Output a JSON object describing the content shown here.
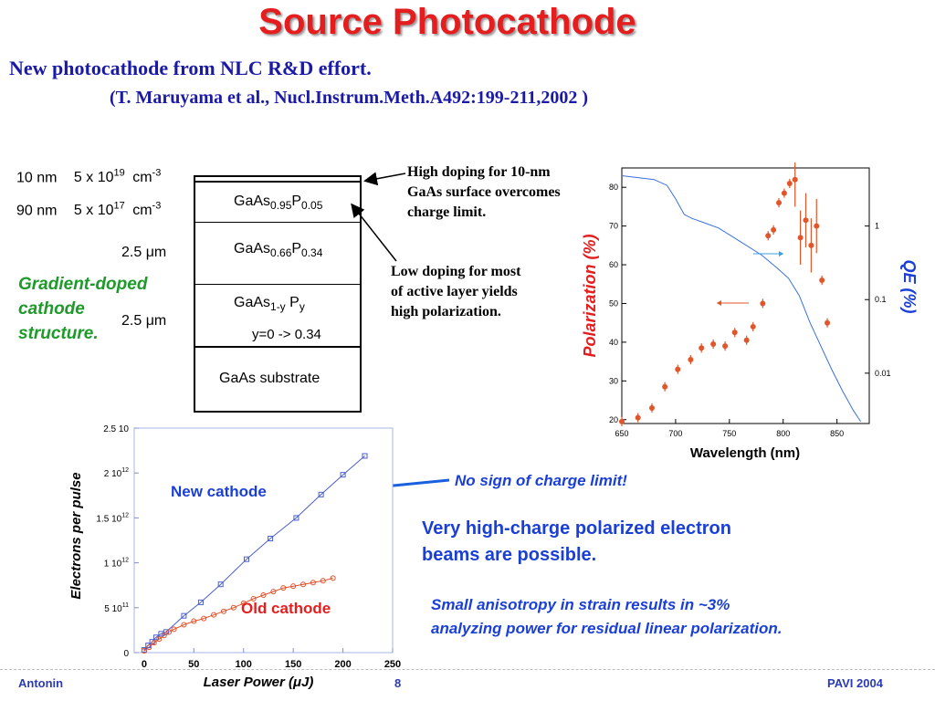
{
  "slide": {
    "title": "Source Photocathode",
    "subtitle": "New photocathode from NLC R&D effort.",
    "reference": "(T. Maruyama et al., Nucl.Instrum.Meth.A492:199-211,2002 )"
  },
  "structure": {
    "rows": [
      {
        "thickness": "10 nm",
        "doping_mantissa": "5 x 10",
        "doping_exp": "19",
        "unit": "cm",
        "unit_exp": "-3"
      },
      {
        "thickness": "90 nm",
        "doping_mantissa": "5 x 10",
        "doping_exp": "17",
        "unit": "cm",
        "unit_exp": "-3"
      }
    ],
    "thickness_top": "2.5 μm",
    "thickness_bottom": "2.5 μm",
    "caption": [
      "Gradient-doped",
      "cathode",
      "structure."
    ],
    "layers": [
      {
        "base": "GaAs",
        "sub1": "0.95",
        "mid": "P",
        "sub2": "0.05"
      },
      {
        "base": "GaAs",
        "sub1": "0.66",
        "mid": "P",
        "sub2": "0.34"
      },
      {
        "base": "GaAs",
        "sub1": "1-y",
        "mid": " P",
        "sub2": "y",
        "note": "y=0 -> 0.34"
      },
      {
        "label": "GaAs substrate"
      }
    ]
  },
  "notes": {
    "high_doping": [
      "High doping for 10-nm",
      "GaAs surface overcomes",
      "charge limit."
    ],
    "low_doping": [
      "Low doping for most",
      "of active layer yields",
      "high polarization."
    ],
    "no_charge_limit": "No sign of charge limit!",
    "high_charge": [
      "Very high-charge polarized electron",
      "beams are possible."
    ],
    "anisotropy": [
      "Small anisotropy in strain results in ~3%",
      "analyzing power for residual linear polarization."
    ]
  },
  "footer": {
    "left": "Antonin",
    "page": "8",
    "right": "PAVI 2004"
  },
  "colors": {
    "title": "#e41e1e",
    "accent_blue": "#1a3fd6",
    "green": "#1d9a2a",
    "data_red": "#e0562a",
    "line_blue": "#3a6fe0"
  },
  "chart_data": [
    {
      "type": "scatter",
      "xlabel": "Wavelength (nm)",
      "ylabel": "Polarization (%)",
      "y2label": "QE (%)",
      "xlim": [
        650,
        880
      ],
      "ylim": [
        19,
        85
      ],
      "x_ticks": [
        "650",
        "700",
        "750",
        "800",
        "850"
      ],
      "y_ticks": [
        "20",
        "30",
        "40",
        "50",
        "60",
        "70",
        "80"
      ],
      "y2_ticks": [
        "1",
        "0.1",
        "0.01"
      ],
      "series": [
        {
          "x": [
            650,
            665,
            678,
            690,
            702,
            714,
            724,
            735,
            746,
            755,
            766,
            772,
            781,
            786,
            791,
            796,
            801,
            806,
            811,
            816,
            821,
            826,
            831,
            836,
            841
          ],
          "y": [
            19.5,
            20.5,
            23,
            28.5,
            33,
            35.5,
            38.5,
            39.5,
            39,
            42.5,
            40.5,
            44,
            50,
            67.5,
            69,
            76,
            78.5,
            81,
            82,
            67,
            71.5,
            65,
            70,
            56,
            45
          ]
        }
      ],
      "qe_curve": {
        "x": [
          650,
          665,
          680,
          692,
          700,
          708,
          715,
          725,
          740,
          760,
          780,
          795,
          805,
          815,
          825,
          835,
          845,
          855,
          865,
          872
        ],
        "y": [
          83,
          82.5,
          82,
          80.5,
          77,
          73,
          72,
          71,
          69.5,
          66,
          62.5,
          59,
          56.5,
          52,
          45,
          39,
          33,
          27.5,
          22.5,
          19.5
        ]
      }
    },
    {
      "type": "line",
      "xlabel": "Laser Power (μJ)",
      "ylabel": "Electrons per pulse",
      "xlim": [
        -10,
        250
      ],
      "ylim": [
        0,
        2500000000000.0
      ],
      "x_ticks": [
        "0",
        "50",
        "100",
        "150",
        "200",
        "250"
      ],
      "y_ticks": [
        "0",
        "5 10",
        "1 10",
        "1.5 10",
        "2 10",
        "2.5 10"
      ],
      "y_tick_exps": [
        "",
        "11",
        "12",
        "12",
        "12",
        ""
      ],
      "series": [
        {
          "name": "New cathode",
          "x": [
            0,
            4,
            8,
            12,
            17,
            22,
            40,
            57,
            77,
            103,
            127,
            153,
            178,
            200,
            222
          ],
          "y": [
            30000000000.0,
            80000000000.0,
            120000000000.0,
            170000000000.0,
            210000000000.0,
            230000000000.0,
            410000000000.0,
            560000000000.0,
            760000000000.0,
            1040000000000.0,
            1270000000000.0,
            1500000000000.0,
            1760000000000.0,
            1980000000000.0,
            2190000000000.0
          ]
        },
        {
          "name": "Old cathode",
          "x": [
            0,
            5,
            10,
            15,
            20,
            25,
            30,
            40,
            50,
            60,
            70,
            80,
            90,
            100,
            110,
            120,
            130,
            140,
            150,
            160,
            170,
            180,
            190
          ],
          "y": [
            20000000000.0,
            60000000000.0,
            110000000000.0,
            150000000000.0,
            190000000000.0,
            230000000000.0,
            260000000000.0,
            310000000000.0,
            350000000000.0,
            380000000000.0,
            420000000000.0,
            460000000000.0,
            500000000000.0,
            550000000000.0,
            600000000000.0,
            640000000000.0,
            680000000000.0,
            720000000000.0,
            740000000000.0,
            760000000000.0,
            780000000000.0,
            800000000000.0,
            830000000000.0
          ]
        }
      ]
    }
  ]
}
